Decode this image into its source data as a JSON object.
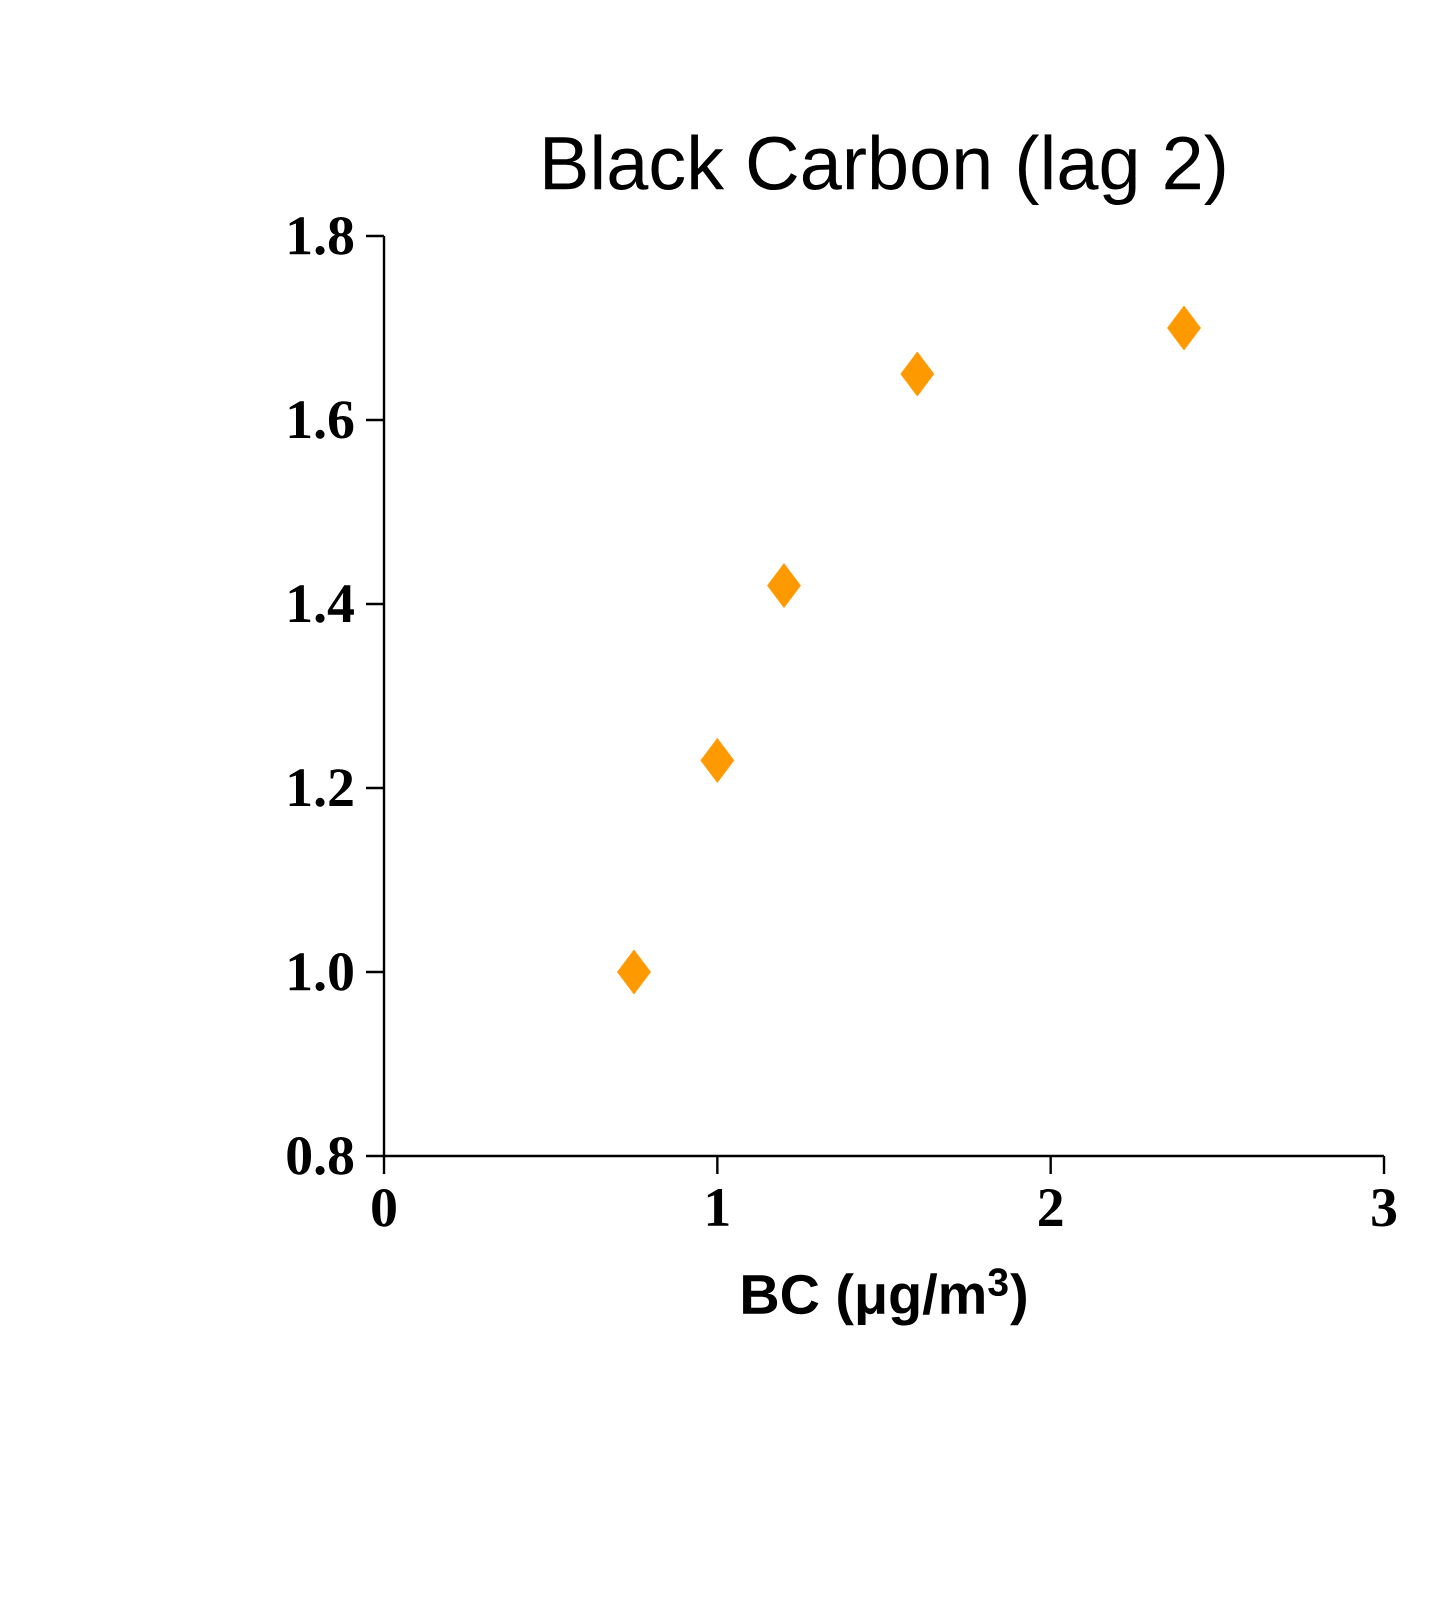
{
  "chart_data": {
    "type": "scatter",
    "title": "Black Carbon (lag 2)",
    "xlabel": "BC (μg/m$^{3}$)",
    "x": [
      0.75,
      1.0,
      1.2,
      1.6,
      2.4
    ],
    "values": [
      1.0,
      1.23,
      1.42,
      1.65,
      1.7
    ],
    "color": "#ff9900",
    "marker": "diamond",
    "xlim": [
      0,
      3
    ],
    "xticks": [
      0,
      1,
      2,
      3
    ],
    "ylim": [
      0.8,
      1.8
    ],
    "yticks": [
      {
        "value": 0.8,
        "label": "0.8"
      },
      {
        "value": 1.0,
        "label": "1.0"
      },
      {
        "value": 1.2,
        "label": "1.2"
      },
      {
        "value": 1.4,
        "label": "1.4"
      },
      {
        "value": 1.6,
        "label": "1.6"
      },
      {
        "value": 1.8,
        "label": "1.8"
      }
    ]
  }
}
